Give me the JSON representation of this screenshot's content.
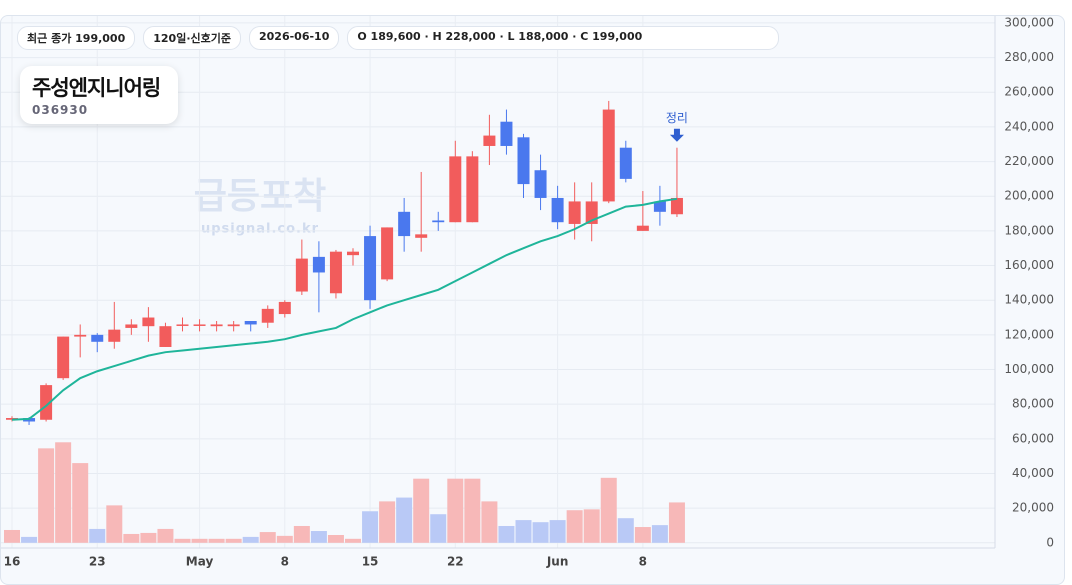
{
  "header": {
    "chips": [
      "최근 종가 199,000",
      "120일·신호기준",
      "2026-06-10",
      "O 189,600 · H 228,000 · L 188,000 · C 199,000"
    ]
  },
  "stock": {
    "name": "주성엔지니어링",
    "code": "036930"
  },
  "watermark": {
    "title": "급등포착",
    "site": "upsignal.co.kr"
  },
  "chart_data": {
    "type": "candlestick",
    "categories": [
      "16",
      null,
      null,
      null,
      null,
      "23",
      null,
      null,
      null,
      null,
      null,
      "May",
      null,
      null,
      null,
      null,
      "8",
      null,
      null,
      null,
      null,
      "15",
      null,
      null,
      null,
      null,
      "22",
      null,
      null,
      null,
      null,
      null,
      "Jun",
      null,
      null,
      null,
      null,
      "8",
      null,
      null
    ],
    "open": [
      71000,
      72000,
      71000,
      95000,
      119000,
      120000,
      116000,
      124000,
      125000,
      113000,
      126000,
      126000,
      125000,
      125000,
      128000,
      127000,
      132000,
      145000,
      165000,
      144000,
      166000,
      177000,
      152000,
      191000,
      176000,
      186000,
      185000,
      185000,
      229000,
      243000,
      234000,
      215000,
      199000,
      184000,
      184000,
      197000,
      228000,
      180000,
      197000,
      189600
    ],
    "high": [
      73000,
      72500,
      92000,
      119000,
      126000,
      121000,
      139000,
      129000,
      136000,
      127000,
      130000,
      129000,
      128000,
      128000,
      128000,
      137000,
      140000,
      175000,
      174000,
      169000,
      170000,
      183000,
      182000,
      199000,
      214000,
      191000,
      232000,
      226000,
      247000,
      250000,
      236000,
      224000,
      206000,
      208000,
      208000,
      255000,
      232000,
      203000,
      206000,
      228000
    ],
    "low": [
      70000,
      68000,
      70000,
      94000,
      107000,
      110000,
      112000,
      120000,
      116000,
      113000,
      122000,
      122000,
      122000,
      122000,
      122000,
      124000,
      130000,
      143000,
      133000,
      141000,
      160000,
      135000,
      151000,
      168000,
      168000,
      180000,
      185000,
      185000,
      218000,
      224000,
      199000,
      192000,
      181000,
      175000,
      174000,
      196000,
      208000,
      180000,
      183000,
      188000
    ],
    "close": [
      72000,
      70000,
      91000,
      119000,
      120000,
      116000,
      123000,
      126000,
      130000,
      125000,
      126000,
      126000,
      126000,
      126000,
      126000,
      135000,
      139000,
      164000,
      156000,
      168000,
      168000,
      140000,
      182000,
      177000,
      178000,
      185000,
      223000,
      223000,
      235000,
      229000,
      207000,
      199000,
      185000,
      197000,
      197000,
      250000,
      210000,
      183000,
      191000,
      199000
    ],
    "volume": [
      7400,
      3400,
      54500,
      58000,
      46000,
      8000,
      21600,
      5100,
      5700,
      8000,
      2300,
      2300,
      2300,
      2300,
      3400,
      6200,
      4000,
      9700,
      6800,
      4500,
      2300,
      18200,
      23900,
      26100,
      37000,
      16500,
      37000,
      37000,
      23900,
      9700,
      13100,
      11900,
      13100,
      18800,
      19300,
      37500,
      14200,
      9100,
      10200,
      23300
    ],
    "ma": [
      71000,
      71500,
      79000,
      88000,
      95000,
      99000,
      102000,
      105000,
      108000,
      110000,
      111000,
      112000,
      113000,
      114000,
      115000,
      116000,
      117500,
      120000,
      122000,
      124000,
      129000,
      133000,
      137000,
      140000,
      143000,
      146000,
      151000,
      156000,
      161000,
      166000,
      170000,
      174000,
      177000,
      181000,
      186000,
      190000,
      194000,
      195000,
      197000,
      198500
    ],
    "up_color": "#f25c5c",
    "down_color": "#4a78ee",
    "up_volume_color": "#f7b8b8",
    "down_volume_color": "#b9c9f6",
    "ma_color": "#1fb59a",
    "annotation": "정리",
    "ylim": [
      -3000,
      304000
    ],
    "yticks": [
      0,
      {
        "value": 20000,
        "label": "20,000"
      },
      {
        "value": 40000,
        "label": "40,000"
      },
      {
        "value": 60000,
        "label": "60,000"
      },
      {
        "value": 80000,
        "label": "80,000"
      },
      {
        "value": 100000,
        "label": "100,000"
      },
      {
        "value": 120000,
        "label": "120,000"
      },
      {
        "value": 140000,
        "label": "140,000"
      },
      {
        "value": 160000,
        "label": "160,000"
      },
      {
        "value": 180000,
        "label": "180,000"
      },
      {
        "value": 200000,
        "label": "200,000"
      },
      {
        "value": 220000,
        "label": "220,000"
      },
      {
        "value": 240000,
        "label": "240,000"
      },
      {
        "value": 260000,
        "label": "260,000"
      },
      {
        "value": 280000,
        "label": "280,000"
      },
      {
        "value": 300000,
        "label": "300,000"
      }
    ],
    "grid": true
  }
}
